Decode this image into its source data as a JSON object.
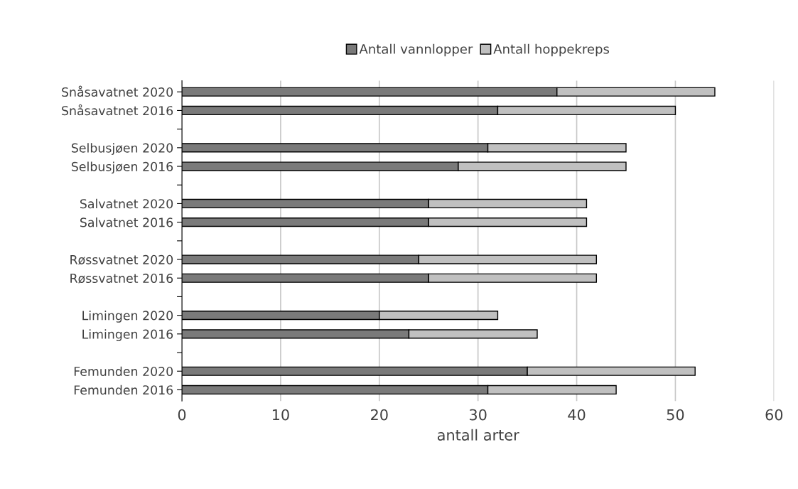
{
  "chart_data": {
    "type": "bar",
    "orientation": "horizontal",
    "stacked": true,
    "categories": [
      "Snåsavatnet 2020",
      "Snåsavatnet 2016",
      null,
      "Selbusjøen 2020",
      "Selbusjøen 2016",
      null,
      "Salvatnet 2020",
      "Salvatnet 2016",
      null,
      "Røssvatnet 2020",
      "Røssvatnet 2016",
      null,
      "Limingen 2020",
      "Limingen 2016",
      null,
      "Femunden 2020",
      "Femunden 2016"
    ],
    "series": [
      {
        "name": "Antall vannlopper",
        "color": "#7a7a7a",
        "values": [
          38,
          32,
          null,
          31,
          28,
          null,
          25,
          25,
          null,
          24,
          25,
          null,
          20,
          23,
          null,
          35,
          31
        ]
      },
      {
        "name": "Antall hoppekreps",
        "color": "#c0c0c0",
        "values": [
          16,
          18,
          null,
          14,
          17,
          null,
          16,
          16,
          null,
          18,
          17,
          null,
          12,
          13,
          null,
          17,
          13
        ]
      }
    ],
    "xlabel": "antall arter",
    "xlim": [
      0,
      60
    ],
    "xticks": [
      0,
      10,
      20,
      30,
      40,
      50,
      60
    ],
    "grid": "x",
    "legend": "top"
  }
}
